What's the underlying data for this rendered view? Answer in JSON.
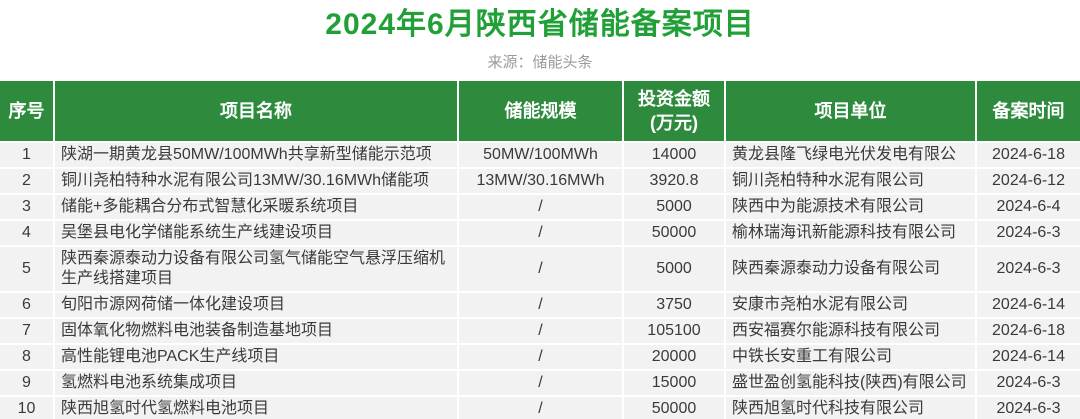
{
  "title": "2024年6月陕西省储能备案项目",
  "source_label": "来源：储能头条",
  "colors": {
    "title_green": "#21a038",
    "header_green": "#2e8b3d",
    "row_bg": "#f2f2f2",
    "source_gray": "#9a9a9a"
  },
  "chart_data": {
    "type": "table",
    "title": "2024年6月陕西省储能备案项目",
    "source": "来源：储能头条",
    "columns": [
      "序号",
      "项目名称",
      "储能规模",
      "投资金额\n(万元)",
      "项目单位",
      "备案时间"
    ],
    "rows": [
      [
        "1",
        "陕湖一期黄龙县50MW/100MWh共享新型储能示范项",
        "50MW/100MWh",
        "14000",
        "黄龙县隆飞绿电光伏发电有限公",
        "2024-6-18"
      ],
      [
        "2",
        "铜川尧柏特种水泥有限公司13MW/30.16MWh储能项",
        "13MW/30.16MWh",
        "3920.8",
        "铜川尧柏特种水泥有限公司",
        "2024-6-12"
      ],
      [
        "3",
        "储能+多能耦合分布式智慧化采暖系统项目",
        "/",
        "5000",
        "陕西中为能源技术有限公司",
        "2024-6-4"
      ],
      [
        "4",
        "吴堡县电化学储能系统生产线建设项目",
        "/",
        "50000",
        "榆林瑞海讯新能源科技有限公司",
        "2024-6-3"
      ],
      [
        "5",
        "陕西秦源泰动力设备有限公司氢气储能空气悬浮压缩机生产线搭建项目",
        "/",
        "5000",
        "陕西秦源泰动力设备有限公司",
        "2024-6-3"
      ],
      [
        "6",
        "旬阳市源网荷储一体化建设项目",
        "/",
        "3750",
        "安康市尧柏水泥有限公司",
        "2024-6-14"
      ],
      [
        "7",
        "固体氧化物燃料电池装备制造基地项目",
        "/",
        "105100",
        "西安福赛尔能源科技有限公司",
        "2024-6-18"
      ],
      [
        "8",
        "高性能锂电池PACK生产线项目",
        "/",
        "20000",
        "中铁长安重工有限公司",
        "2024-6-14"
      ],
      [
        "9",
        "氢燃料电池系统集成项目",
        "/",
        "15000",
        "盛世盈创氢能科技(陕西)有限公司",
        "2024-6-3"
      ],
      [
        "10",
        "陕西旭氢时代氢燃料电池项目",
        "/",
        "50000",
        "陕西旭氢时代科技有限公司",
        "2024-6-3"
      ]
    ]
  }
}
